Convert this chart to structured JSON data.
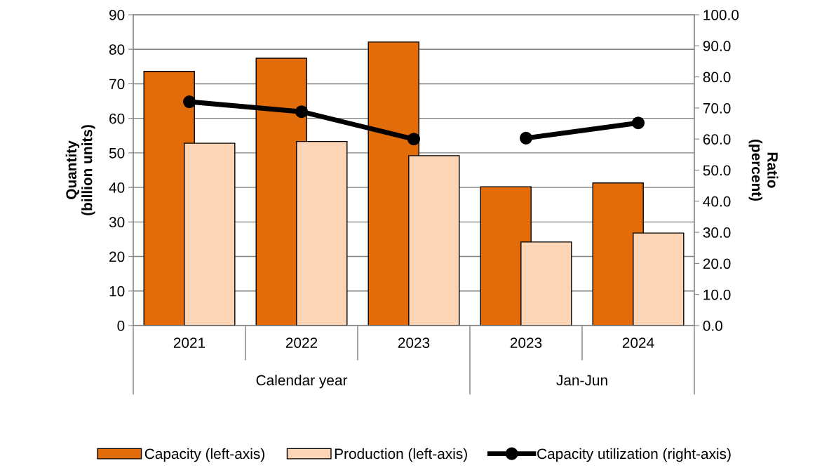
{
  "chart_data": {
    "type": "bar",
    "ylabel": "Quantity\n(billion units)",
    "y2label": "Ratio\n(percent)",
    "categories": [
      "2021",
      "2022",
      "2023",
      "2023",
      "2024"
    ],
    "annotations": [
      "Calendar year",
      "Jan-Jun"
    ],
    "series": [
      {
        "name": "Capacity (left-axis)",
        "color": "#e36c0a",
        "values": [
          73.6,
          77.4,
          82.1,
          40.2,
          41.3
        ]
      },
      {
        "name": "Production (left-axis)",
        "color": "#fbd5b5",
        "values": [
          52.8,
          53.3,
          49.2,
          24.2,
          26.8
        ]
      },
      {
        "name": "Capacity utilization (right-axis)",
        "type": "line",
        "axis": "y2",
        "color": "#000000",
        "marker": "circle",
        "values": [
          72.0,
          68.8,
          60.0,
          60.3,
          65.2
        ]
      }
    ],
    "ylim": [
      0,
      90
    ],
    "yticks": [
      0,
      10,
      20,
      30,
      40,
      50,
      60,
      70,
      80,
      90
    ],
    "y2lim": [
      0,
      100
    ],
    "y2ticks": [
      {
        "value": 0,
        "label": "0.0"
      },
      {
        "value": 10,
        "label": "10.0"
      },
      {
        "value": 20,
        "label": "20.0"
      },
      {
        "value": 30,
        "label": "30.0"
      },
      {
        "value": 40,
        "label": "40.0"
      },
      {
        "value": 50,
        "label": "50.0"
      },
      {
        "value": 60,
        "label": "60.0"
      },
      {
        "value": 70,
        "label": "70.0"
      },
      {
        "value": 80,
        "label": "80.0"
      },
      {
        "value": 90,
        "label": "90.0"
      },
      {
        "value": 100,
        "label": "100.0"
      }
    ],
    "grid": "y",
    "legend": "bottom"
  }
}
